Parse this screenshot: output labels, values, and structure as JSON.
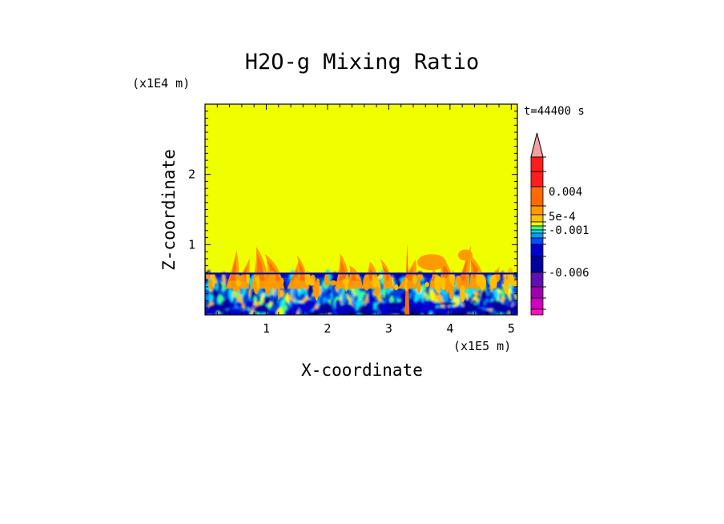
{
  "chart_data": {
    "type": "heatmap",
    "title": "H2O-g Mixing Ratio",
    "xlabel": "X-coordinate",
    "ylabel": "Z-coordinate",
    "x_unit": "(x1E5 m)",
    "y_unit": "(x1E4 m)",
    "time_label": "t=44400 s",
    "xlim": [
      0,
      5.1
    ],
    "ylim": [
      0,
      3.0
    ],
    "x_ticks": [
      "1",
      "2",
      "3",
      "4",
      "5"
    ],
    "x_tick_values": [
      1,
      2,
      3,
      4,
      5
    ],
    "y_ticks": [
      "1",
      "2"
    ],
    "y_tick_values": [
      1,
      2
    ],
    "background_value_color": "#f0ff00",
    "colorbar": {
      "labels": [
        "0.004",
        "5e-4",
        "-0.001",
        "-0.006"
      ],
      "colors_top_to_bottom": [
        "#f4a0a0",
        "#ff1c1c",
        "#ff6a00",
        "#ff9a00",
        "#ffc000",
        "#f0ff00",
        "#40ff80",
        "#00e0ff",
        "#009cff",
        "#0050ff",
        "#0000d0",
        "#0000a0",
        "#6010b0",
        "#a000b0",
        "#d000c0",
        "#ff10c0"
      ]
    },
    "structure": {
      "boundary_layer_top": 0.6,
      "plume_top_max": 1.05
    }
  }
}
